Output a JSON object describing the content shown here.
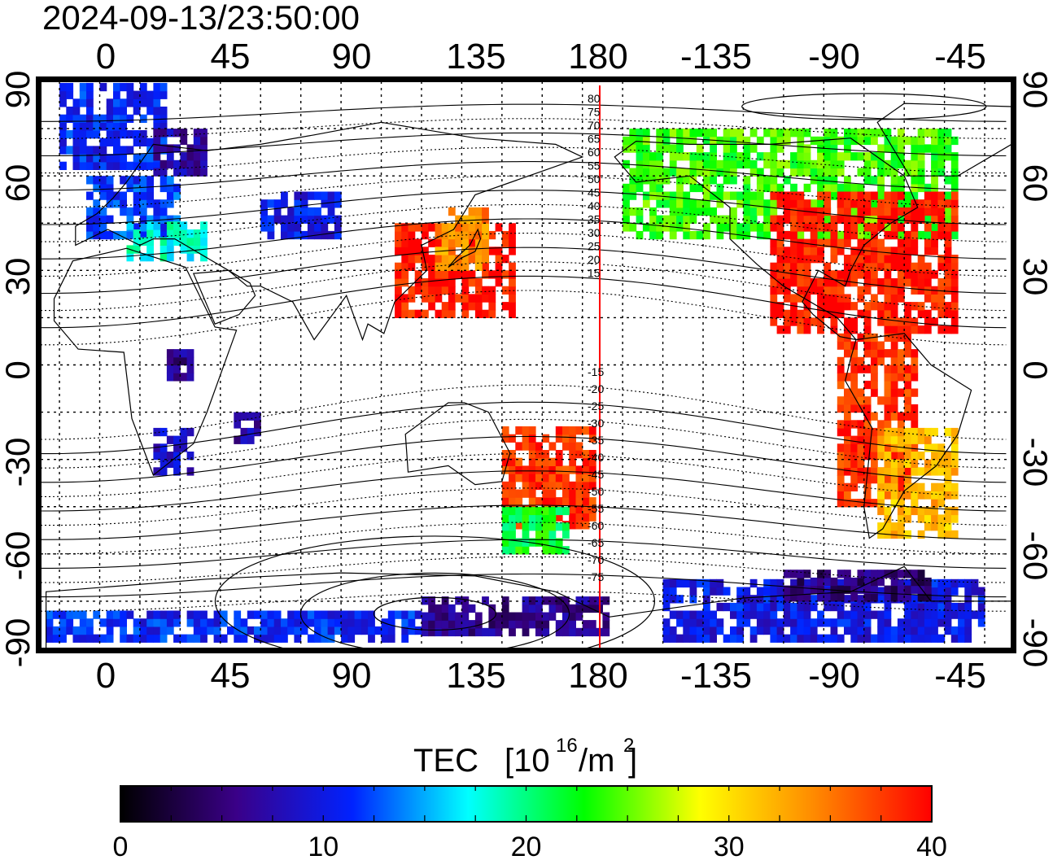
{
  "title": "2024-09-13/23:50:00",
  "lon_ticks": [
    "0",
    "45",
    "90",
    "135",
    "180",
    "-135",
    "-90",
    "-45"
  ],
  "lat_ticks": [
    "90",
    "60",
    "30",
    "0",
    "-30",
    "-60",
    "-90"
  ],
  "mag_lat_labels": [
    "80",
    "75",
    "70",
    "65",
    "60",
    "55",
    "50",
    "45",
    "40",
    "35",
    "30",
    "25",
    "20",
    "15",
    "-15",
    "-20",
    "-25",
    "-30",
    "-35",
    "-40",
    "-45",
    "-50",
    "-55",
    "-60",
    "-65",
    "-70",
    "-75"
  ],
  "colorbar": {
    "label_text": "TEC",
    "unit_open": "[10",
    "unit_exp": "16",
    "unit_mid": "/m",
    "unit_exp2": "2",
    "unit_close": "]",
    "min": 0,
    "max": 40,
    "tick_labels": [
      "0",
      "10",
      "20",
      "30",
      "40"
    ],
    "colors": [
      "#000000",
      "#3a0088",
      "#0022ff",
      "#00ffff",
      "#00ff00",
      "#ffff00",
      "#ff8800",
      "#ff0000"
    ]
  },
  "colors": {
    "line": "#000000",
    "terminator": "#ff0000"
  },
  "chart_data": {
    "type": "heatmap",
    "variable": "TEC",
    "value_range": [
      0,
      40
    ],
    "lon_range": [
      -22,
      340
    ],
    "lat_range": [
      -90,
      90
    ],
    "terminator_lon": 182,
    "regions": [
      {
        "lon": [
          -15,
          25
        ],
        "lat": [
          62,
          88
        ],
        "tec": 11
      },
      {
        "lon": [
          20,
          40
        ],
        "lat": [
          60,
          75
        ],
        "tec": 7
      },
      {
        "lon": [
          -5,
          30
        ],
        "lat": [
          40,
          58
        ],
        "tec": 12
      },
      {
        "lon": [
          10,
          40
        ],
        "lat": [
          33,
          45
        ],
        "tec": 18
      },
      {
        "lon": [
          60,
          90
        ],
        "lat": [
          40,
          55
        ],
        "tec": 10
      },
      {
        "lon": [
          110,
          155
        ],
        "lat": [
          15,
          45
        ],
        "tec": 39
      },
      {
        "lon": [
          125,
          145
        ],
        "lat": [
          30,
          48
        ],
        "tec": 34
      },
      {
        "lon": [
          195,
          320
        ],
        "lat": [
          40,
          75
        ],
        "tec": 24
      },
      {
        "lon": [
          250,
          320
        ],
        "lat": [
          10,
          55
        ],
        "tec": 39
      },
      {
        "lon": [
          275,
          305
        ],
        "lat": [
          -45,
          10
        ],
        "tec": 38
      },
      {
        "lon": [
          290,
          320
        ],
        "lat": [
          -55,
          -20
        ],
        "tec": 32
      },
      {
        "lon": [
          150,
          185
        ],
        "lat": [
          -52,
          -20
        ],
        "tec": 38
      },
      {
        "lon": [
          150,
          175
        ],
        "lat": [
          -60,
          -45
        ],
        "tec": 22
      },
      {
        "lon": [
          210,
          330
        ],
        "lat": [
          -88,
          -70
        ],
        "tec": 10
      },
      {
        "lon": [
          -20,
          120
        ],
        "lat": [
          -88,
          -80
        ],
        "tec": 11
      },
      {
        "lon": [
          120,
          190
        ],
        "lat": [
          -86,
          -75
        ],
        "tec": 6
      },
      {
        "lon": [
          25,
          35
        ],
        "lat": [
          -5,
          5
        ],
        "tec": 6
      },
      {
        "lon": [
          50,
          60
        ],
        "lat": [
          -25,
          -15
        ],
        "tec": 7
      },
      {
        "lon": [
          20,
          35
        ],
        "lat": [
          -35,
          -20
        ],
        "tec": 9
      },
      {
        "lon": [
          255,
          310
        ],
        "lat": [
          -75,
          -65
        ],
        "tec": 5
      }
    ]
  }
}
